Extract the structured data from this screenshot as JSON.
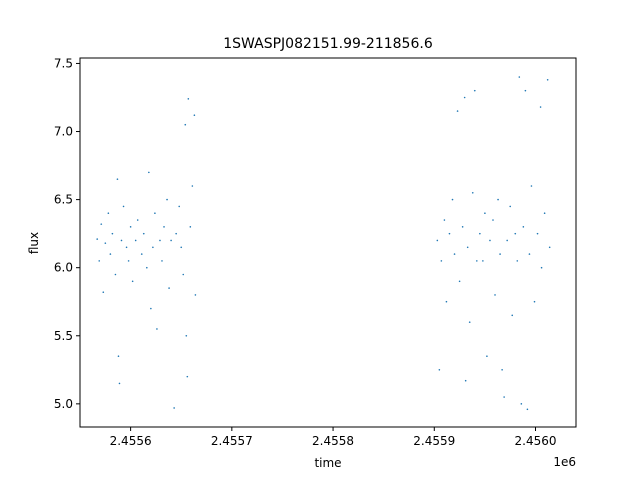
{
  "chart_data": {
    "type": "scatter",
    "title": "1SWASPJ082151.99-211856.6",
    "xlabel": "time",
    "ylabel": "flux",
    "x_offset_label": "1e6",
    "xlim": [
      2455550,
      2456040
    ],
    "ylim": [
      4.83,
      7.54
    ],
    "x_ticks": [
      2455600,
      2455700,
      2455800,
      2455900,
      2456000
    ],
    "x_tick_labels": [
      "2.4556",
      "2.4557",
      "2.4558",
      "2.4559",
      "2.4560"
    ],
    "y_ticks": [
      5.0,
      5.5,
      6.0,
      6.5,
      7.0,
      7.5
    ],
    "y_tick_labels": [
      "5.0",
      "5.5",
      "6.0",
      "6.5",
      "7.0",
      "7.5"
    ],
    "grid": false,
    "series_color": "#1f77b4",
    "series": [
      {
        "name": "",
        "points": [
          [
            2455567,
            6.21
          ],
          [
            2455569,
            6.05
          ],
          [
            2455571,
            6.32
          ],
          [
            2455573,
            5.82
          ],
          [
            2455575,
            6.18
          ],
          [
            2455578,
            6.4
          ],
          [
            2455580,
            6.1
          ],
          [
            2455582,
            6.25
          ],
          [
            2455585,
            5.95
          ],
          [
            2455587,
            6.65
          ],
          [
            2455588,
            5.35
          ],
          [
            2455589,
            5.15
          ],
          [
            2455591,
            6.2
          ],
          [
            2455593,
            6.45
          ],
          [
            2455596,
            6.15
          ],
          [
            2455598,
            6.05
          ],
          [
            2455600,
            6.3
          ],
          [
            2455602,
            5.9
          ],
          [
            2455605,
            6.2
          ],
          [
            2455607,
            6.35
          ],
          [
            2455611,
            6.1
          ],
          [
            2455613,
            6.25
          ],
          [
            2455616,
            6.0
          ],
          [
            2455618,
            6.7
          ],
          [
            2455620,
            5.7
          ],
          [
            2455622,
            6.15
          ],
          [
            2455624,
            6.4
          ],
          [
            2455626,
            5.55
          ],
          [
            2455629,
            6.2
          ],
          [
            2455631,
            6.05
          ],
          [
            2455633,
            6.3
          ],
          [
            2455636,
            6.5
          ],
          [
            2455638,
            5.85
          ],
          [
            2455640,
            6.2
          ],
          [
            2455643,
            4.97
          ],
          [
            2455645,
            6.25
          ],
          [
            2455648,
            6.45
          ],
          [
            2455650,
            6.15
          ],
          [
            2455652,
            5.95
          ],
          [
            2455654,
            7.05
          ],
          [
            2455655,
            5.5
          ],
          [
            2455656,
            5.2
          ],
          [
            2455657,
            7.24
          ],
          [
            2455659,
            6.3
          ],
          [
            2455661,
            6.6
          ],
          [
            2455663,
            7.12
          ],
          [
            2455664,
            5.8
          ],
          [
            2455903,
            6.2
          ],
          [
            2455905,
            5.25
          ],
          [
            2455907,
            6.05
          ],
          [
            2455910,
            6.35
          ],
          [
            2455912,
            5.75
          ],
          [
            2455915,
            6.25
          ],
          [
            2455918,
            6.5
          ],
          [
            2455920,
            6.1
          ],
          [
            2455923,
            7.15
          ],
          [
            2455925,
            5.9
          ],
          [
            2455928,
            6.3
          ],
          [
            2455930,
            7.25
          ],
          [
            2455931,
            5.17
          ],
          [
            2455933,
            6.15
          ],
          [
            2455935,
            5.6
          ],
          [
            2455938,
            6.55
          ],
          [
            2455940,
            7.3
          ],
          [
            2455942,
            6.05
          ],
          [
            2455945,
            6.25
          ],
          [
            2455948,
            6.05
          ],
          [
            2455950,
            6.4
          ],
          [
            2455952,
            5.35
          ],
          [
            2455955,
            6.2
          ],
          [
            2455958,
            6.35
          ],
          [
            2455960,
            5.8
          ],
          [
            2455963,
            6.5
          ],
          [
            2455965,
            6.1
          ],
          [
            2455967,
            5.25
          ],
          [
            2455969,
            5.05
          ],
          [
            2455972,
            6.2
          ],
          [
            2455975,
            6.45
          ],
          [
            2455977,
            5.65
          ],
          [
            2455980,
            6.25
          ],
          [
            2455982,
            6.05
          ],
          [
            2455984,
            7.4
          ],
          [
            2455986,
            5.0
          ],
          [
            2455988,
            6.3
          ],
          [
            2455990,
            7.3
          ],
          [
            2455992,
            4.96
          ],
          [
            2455994,
            6.1
          ],
          [
            2455996,
            6.6
          ],
          [
            2455999,
            5.75
          ],
          [
            2456002,
            6.25
          ],
          [
            2456005,
            7.18
          ],
          [
            2456006,
            6.0
          ],
          [
            2456009,
            6.4
          ],
          [
            2456012,
            7.38
          ],
          [
            2456014,
            6.15
          ]
        ]
      }
    ]
  }
}
